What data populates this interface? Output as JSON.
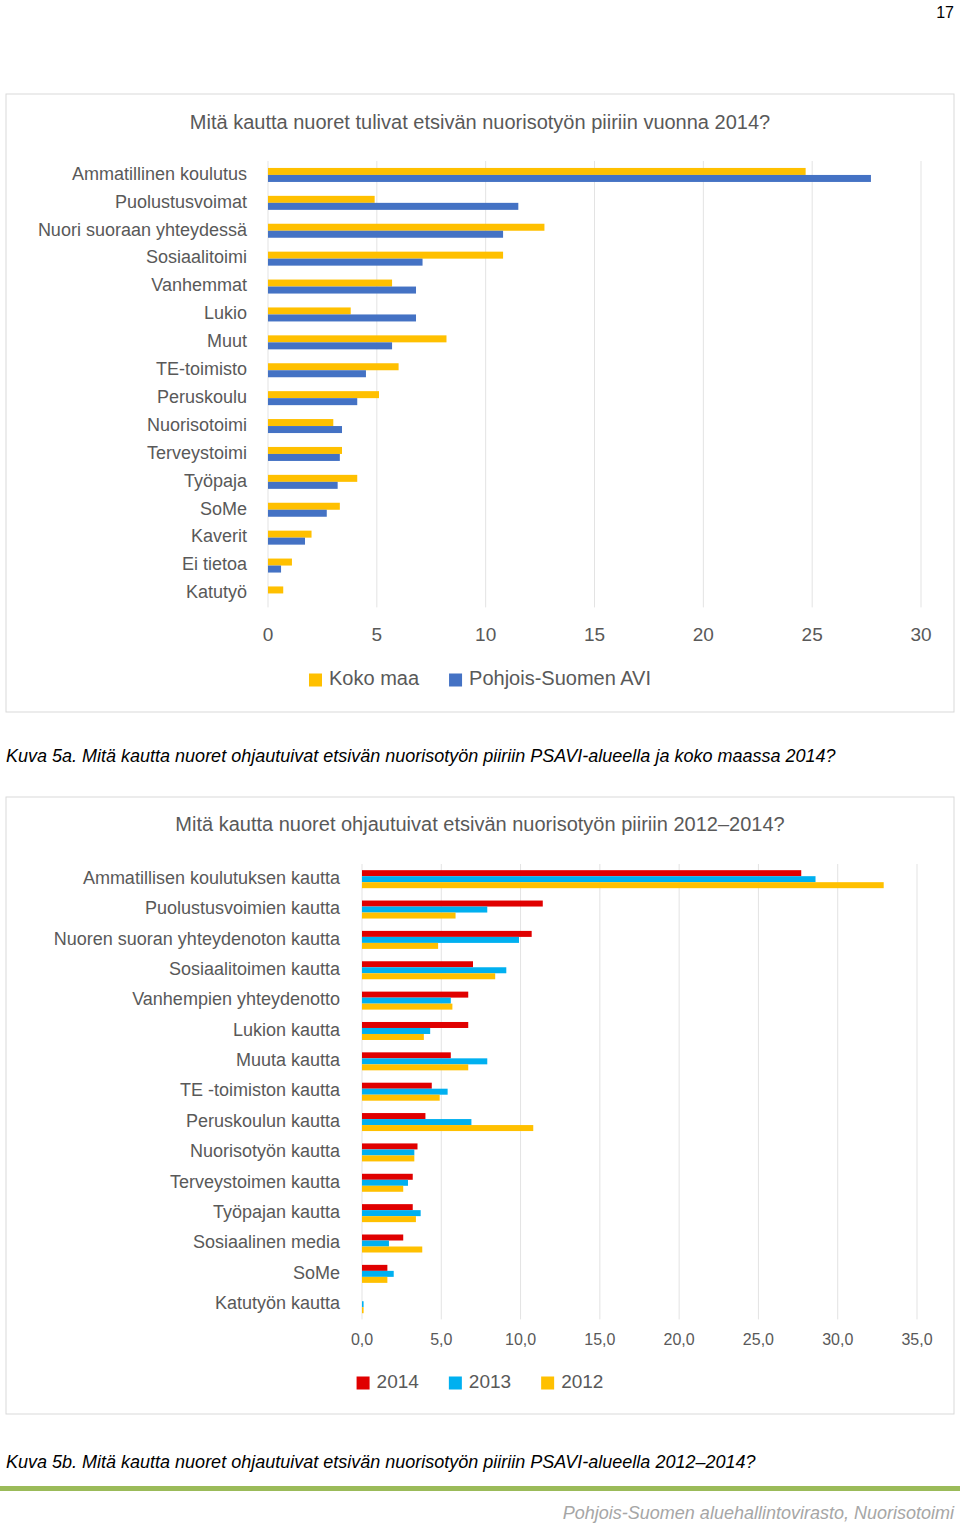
{
  "page_number": "17",
  "captions": [
    "Kuva 5a. Mitä kautta nuoret ohjautuivat etsivän nuorisotyön piiriin PSAVI-alueella ja koko maassa 2014?",
    "Kuva 5b. Mitä kautta nuoret ohjautuivat etsivän nuorisotyön piiriin PSAVI-alueella 2012–2014?"
  ],
  "footer": "Pohjois-Suomen aluehallintovirasto, Nuorisotoimi",
  "chart_data": [
    {
      "type": "bar",
      "orientation": "horizontal",
      "title": "Mitä kautta nuoret tulivat etsivän nuorisotyön piiriin vuonna 2014?",
      "categories": [
        "Ammatillinen koulutus",
        "Puolustusvoimat",
        "Nuori suoraan yhteydessä",
        "Sosiaalitoimi",
        "Vanhemmat",
        "Lukio",
        "Muut",
        "TE-toimisto",
        "Peruskoulu",
        "Nuorisotoimi",
        "Terveystoimi",
        "Työpaja",
        "SoMe",
        "Kaverit",
        "Ei tietoa",
        "Katutyö"
      ],
      "series": [
        {
          "name": "Koko maa",
          "color": "#ffc000",
          "values": [
            24.7,
            4.9,
            12.7,
            10.8,
            5.7,
            3.8,
            8.2,
            6.0,
            5.1,
            3.0,
            3.4,
            4.1,
            3.3,
            2.0,
            1.1,
            0.7
          ]
        },
        {
          "name": "Pohjois-Suomen AVI",
          "color": "#4472c4",
          "values": [
            27.7,
            11.5,
            10.8,
            7.1,
            6.8,
            6.8,
            5.7,
            4.5,
            4.1,
            3.4,
            3.3,
            3.2,
            2.7,
            1.7,
            0.6,
            null
          ]
        }
      ],
      "xlim": [
        0,
        30
      ],
      "xticks": [
        0,
        5,
        10,
        15,
        20,
        25,
        30
      ],
      "grid": true,
      "legend": "bottom"
    },
    {
      "type": "bar",
      "orientation": "horizontal",
      "title": "Mitä kautta nuoret ohjautuivat etsivän nuorisotyön piiriin 2012–2014?",
      "categories": [
        "Ammatillisen koulutuksen kautta",
        "Puolustusvoimien kautta",
        "Nuoren suoran yhteydenoton kautta",
        "Sosiaalitoimen kautta",
        "Vanhempien yhteydenotto",
        "Lukion kautta",
        "Muuta kautta",
        "TE -toimiston kautta",
        "Peruskoulun kautta",
        "Nuorisotyön kautta",
        "Terveystoimen kautta",
        "Työpajan kautta",
        "Sosiaalinen media",
        "SoMe",
        "Katutyön kautta"
      ],
      "series": [
        {
          "name": "2014",
          "color": "#e00000",
          "values": [
            27.7,
            11.4,
            10.7,
            7.0,
            6.7,
            6.7,
            5.6,
            4.4,
            4.0,
            3.5,
            3.2,
            3.2,
            2.6,
            1.6,
            null
          ]
        },
        {
          "name": "2013",
          "color": "#00b0f0",
          "values": [
            28.6,
            7.9,
            9.9,
            9.1,
            5.6,
            4.3,
            7.9,
            5.4,
            6.9,
            3.3,
            2.9,
            3.7,
            1.7,
            2.0,
            0.1
          ]
        },
        {
          "name": "2012",
          "color": "#ffc000",
          "values": [
            32.9,
            5.9,
            4.8,
            8.4,
            5.7,
            3.9,
            6.7,
            4.9,
            10.8,
            3.3,
            2.6,
            3.4,
            3.8,
            1.6,
            0.1
          ]
        }
      ],
      "xlim": [
        0,
        35
      ],
      "xticks": [
        {
          "value": 0,
          "label": "0,0"
        },
        {
          "value": 5,
          "label": "5,0"
        },
        {
          "value": 10,
          "label": "10,0"
        },
        {
          "value": 15,
          "label": "15,0"
        },
        {
          "value": 20,
          "label": "20,0"
        },
        {
          "value": 25,
          "label": "25,0"
        },
        {
          "value": 30,
          "label": "30,0"
        },
        {
          "value": 35,
          "label": "35,0"
        }
      ],
      "grid": true,
      "legend": "bottom"
    }
  ]
}
